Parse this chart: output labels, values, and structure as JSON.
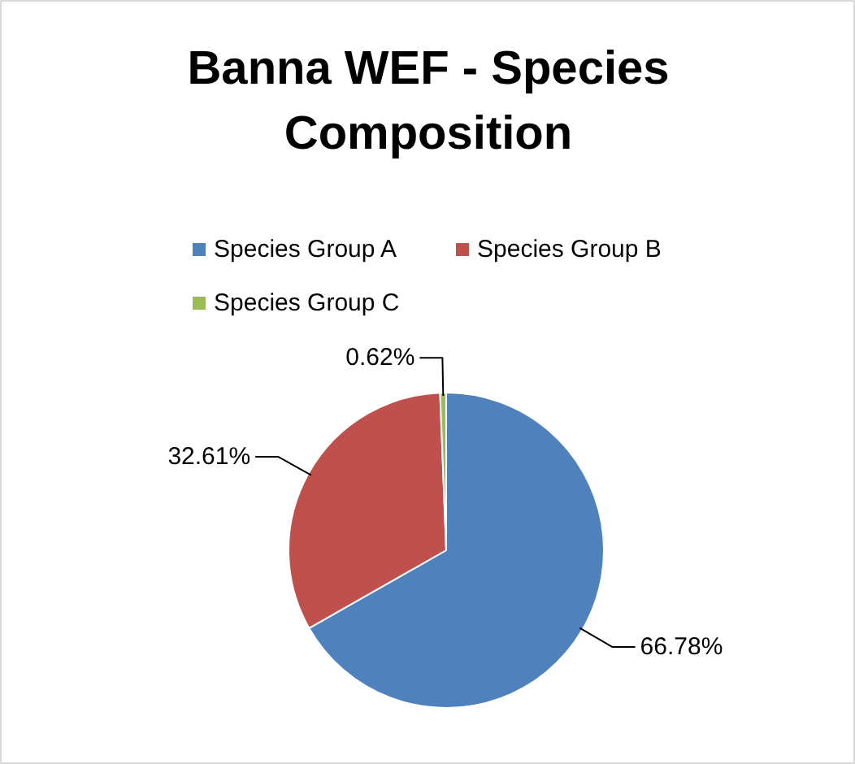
{
  "chart_data": {
    "type": "pie",
    "title": "Banna WEF - Species Composition",
    "categories": [
      "Species Group A",
      "Species Group B",
      "Species Group C"
    ],
    "values": [
      66.78,
      32.61,
      0.62
    ],
    "colors": [
      "#4f81bd",
      "#c0504d",
      "#9bbb59"
    ],
    "value_labels": [
      "66.78%",
      "32.61%",
      "0.62%"
    ],
    "legend": "top"
  }
}
